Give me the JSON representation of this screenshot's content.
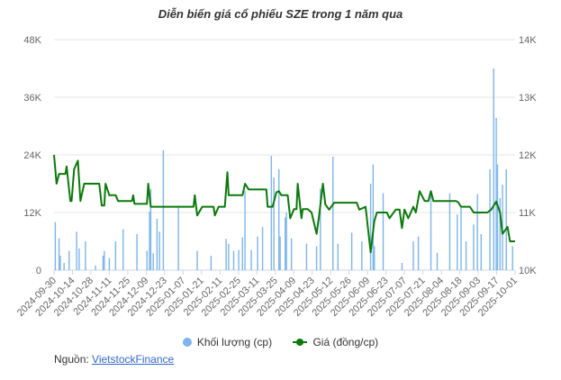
{
  "chart_data": {
    "type": "bar+line",
    "title": "Diễn biến giá cổ phiếu SZE trong 1 năm qua",
    "x_tick_labels": [
      "2024-09-30",
      "2024-10-14",
      "2024-10-28",
      "2024-11-11",
      "2024-11-25",
      "2024-12-09",
      "2024-12-23",
      "2025-01-07",
      "2025-01-21",
      "2025-02-11",
      "2025-02-25",
      "2025-03-11",
      "2025-03-25",
      "2025-04-09",
      "2025-04-23",
      "2025-05-12",
      "2025-05-26",
      "2025-06-09",
      "2025-06-23",
      "2025-07-07",
      "2025-07-21",
      "2025-08-04",
      "2025-08-18",
      "2025-09-03",
      "2025-09-17",
      "2025-10-01"
    ],
    "x_range_days": [
      0,
      367
    ],
    "left_axis": {
      "label": "Khối lượng (cp)",
      "ticks": [
        "0",
        "12K",
        "24K",
        "36K",
        "48K"
      ],
      "tick_values": [
        0,
        12000,
        24000,
        36000,
        48000
      ],
      "range": [
        0,
        48000
      ]
    },
    "right_axis": {
      "label": "Giá (đồng/cp)",
      "ticks": [
        "10K",
        "11K",
        "12K",
        "13K",
        "14K"
      ],
      "tick_values": [
        10000,
        11000,
        12000,
        13000,
        14000
      ],
      "range": [
        10000,
        14000
      ]
    },
    "grid": true,
    "series": [
      {
        "name": "Khối lượng (cp)",
        "type": "bar",
        "color": "#7cb5ec",
        "axis": "left",
        "points_day_value": [
          [
            1,
            10000
          ],
          [
            4,
            6600
          ],
          [
            5,
            3000
          ],
          [
            8,
            1500
          ],
          [
            12,
            4000
          ],
          [
            18,
            8000
          ],
          [
            20,
            4500
          ],
          [
            25,
            6000
          ],
          [
            33,
            1000
          ],
          [
            39,
            3000
          ],
          [
            40,
            4000
          ],
          [
            44,
            2500
          ],
          [
            49,
            6000
          ],
          [
            55,
            8500
          ],
          [
            66,
            7500
          ],
          [
            74,
            4000
          ],
          [
            76,
            12200
          ],
          [
            77,
            16900
          ],
          [
            79,
            3500
          ],
          [
            82,
            10700
          ],
          [
            84,
            8000
          ],
          [
            87,
            25000
          ],
          [
            99,
            13000
          ],
          [
            114,
            4000
          ],
          [
            125,
            3000
          ],
          [
            137,
            6500
          ],
          [
            139,
            5500
          ],
          [
            143,
            4000
          ],
          [
            147,
            4200
          ],
          [
            150,
            6800
          ],
          [
            152,
            16500
          ],
          [
            157,
            4200
          ],
          [
            162,
            7000
          ],
          [
            166,
            9000
          ],
          [
            173,
            23800
          ],
          [
            175,
            19300
          ],
          [
            179,
            21000
          ],
          [
            180,
            7000
          ],
          [
            184,
            11000
          ],
          [
            185,
            12000
          ],
          [
            189,
            6600
          ],
          [
            201,
            5500
          ],
          [
            209,
            5000
          ],
          [
            212,
            17000
          ],
          [
            222,
            23600
          ],
          [
            226,
            5500
          ],
          [
            237,
            7800
          ],
          [
            245,
            6000
          ],
          [
            252,
            18000
          ],
          [
            254,
            22000
          ],
          [
            255,
            5000
          ],
          [
            262,
            16000
          ],
          [
            277,
            1500
          ],
          [
            286,
            6000
          ],
          [
            290,
            7000
          ],
          [
            300,
            16000
          ],
          [
            305,
            3600
          ],
          [
            315,
            16000
          ],
          [
            321,
            11600
          ],
          [
            324,
            13000
          ],
          [
            328,
            6000
          ],
          [
            334,
            9500
          ],
          [
            337,
            15800
          ],
          [
            340,
            7500
          ],
          [
            347,
            21000
          ],
          [
            350,
            42000
          ],
          [
            352,
            31700
          ],
          [
            353,
            22000
          ],
          [
            355,
            15000
          ],
          [
            357,
            17800
          ],
          [
            360,
            21000
          ],
          [
            365,
            5000
          ]
        ]
      },
      {
        "name": "Giá (đồng/cp)",
        "type": "line",
        "color": "#0a7a0a",
        "axis": "right",
        "points_day_value": [
          [
            0,
            12000
          ],
          [
            2,
            11500
          ],
          [
            4,
            11670
          ],
          [
            9,
            11670
          ],
          [
            10,
            11800
          ],
          [
            13,
            11200
          ],
          [
            14,
            11200
          ],
          [
            16,
            11750
          ],
          [
            19,
            11900
          ],
          [
            21,
            11200
          ],
          [
            24,
            11500
          ],
          [
            36,
            11500
          ],
          [
            38,
            11120
          ],
          [
            40,
            11120
          ],
          [
            41,
            11500
          ],
          [
            44,
            11300
          ],
          [
            49,
            11300
          ],
          [
            51,
            11200
          ],
          [
            62,
            11200
          ],
          [
            63,
            11300
          ],
          [
            64,
            11150
          ],
          [
            74,
            11150
          ],
          [
            75,
            11500
          ],
          [
            77,
            11100
          ],
          [
            111,
            11100
          ],
          [
            112,
            11300
          ],
          [
            114,
            10950
          ],
          [
            118,
            11100
          ],
          [
            127,
            11100
          ],
          [
            128,
            10950
          ],
          [
            131,
            11100
          ],
          [
            136,
            11100
          ],
          [
            138,
            11700
          ],
          [
            139,
            11300
          ],
          [
            150,
            11300
          ],
          [
            152,
            11500
          ],
          [
            155,
            11400
          ],
          [
            169,
            11400
          ],
          [
            170,
            11100
          ],
          [
            174,
            11100
          ],
          [
            177,
            11350
          ],
          [
            179,
            11370
          ],
          [
            181,
            11300
          ],
          [
            186,
            11300
          ],
          [
            188,
            10900
          ],
          [
            191,
            11060
          ],
          [
            193,
            11060
          ],
          [
            194,
            11500
          ],
          [
            197,
            10900
          ],
          [
            198,
            11060
          ],
          [
            202,
            11060
          ],
          [
            205,
            11000
          ],
          [
            209,
            10630
          ],
          [
            211,
            10950
          ],
          [
            214,
            11500
          ],
          [
            216,
            11140
          ],
          [
            219,
            11050
          ],
          [
            223,
            11170
          ],
          [
            241,
            11170
          ],
          [
            243,
            11050
          ],
          [
            248,
            11100
          ],
          [
            252,
            10310
          ],
          [
            255,
            10850
          ],
          [
            257,
            11000
          ],
          [
            265,
            11000
          ],
          [
            267,
            10900
          ],
          [
            272,
            11050
          ],
          [
            275,
            11050
          ],
          [
            277,
            10730
          ],
          [
            279,
            11050
          ],
          [
            282,
            10900
          ],
          [
            286,
            11100
          ],
          [
            288,
            11000
          ],
          [
            291,
            11370
          ],
          [
            295,
            11200
          ],
          [
            298,
            11200
          ],
          [
            300,
            11370
          ],
          [
            302,
            11200
          ],
          [
            320,
            11200
          ],
          [
            322,
            11170
          ],
          [
            324,
            11100
          ],
          [
            331,
            11100
          ],
          [
            334,
            11000
          ],
          [
            345,
            11000
          ],
          [
            348,
            11050
          ],
          [
            352,
            11190
          ],
          [
            355,
            11000
          ],
          [
            357,
            10630
          ],
          [
            361,
            10750
          ],
          [
            363,
            10500
          ],
          [
            367,
            10500
          ]
        ]
      }
    ],
    "legend_position": "bottom"
  },
  "legend": {
    "volume_label": "Khối lượng (cp)",
    "price_label": "Giá (đồng/cp)"
  },
  "source": {
    "prefix": "Nguồn:",
    "link_text": "VietstockFinance"
  }
}
